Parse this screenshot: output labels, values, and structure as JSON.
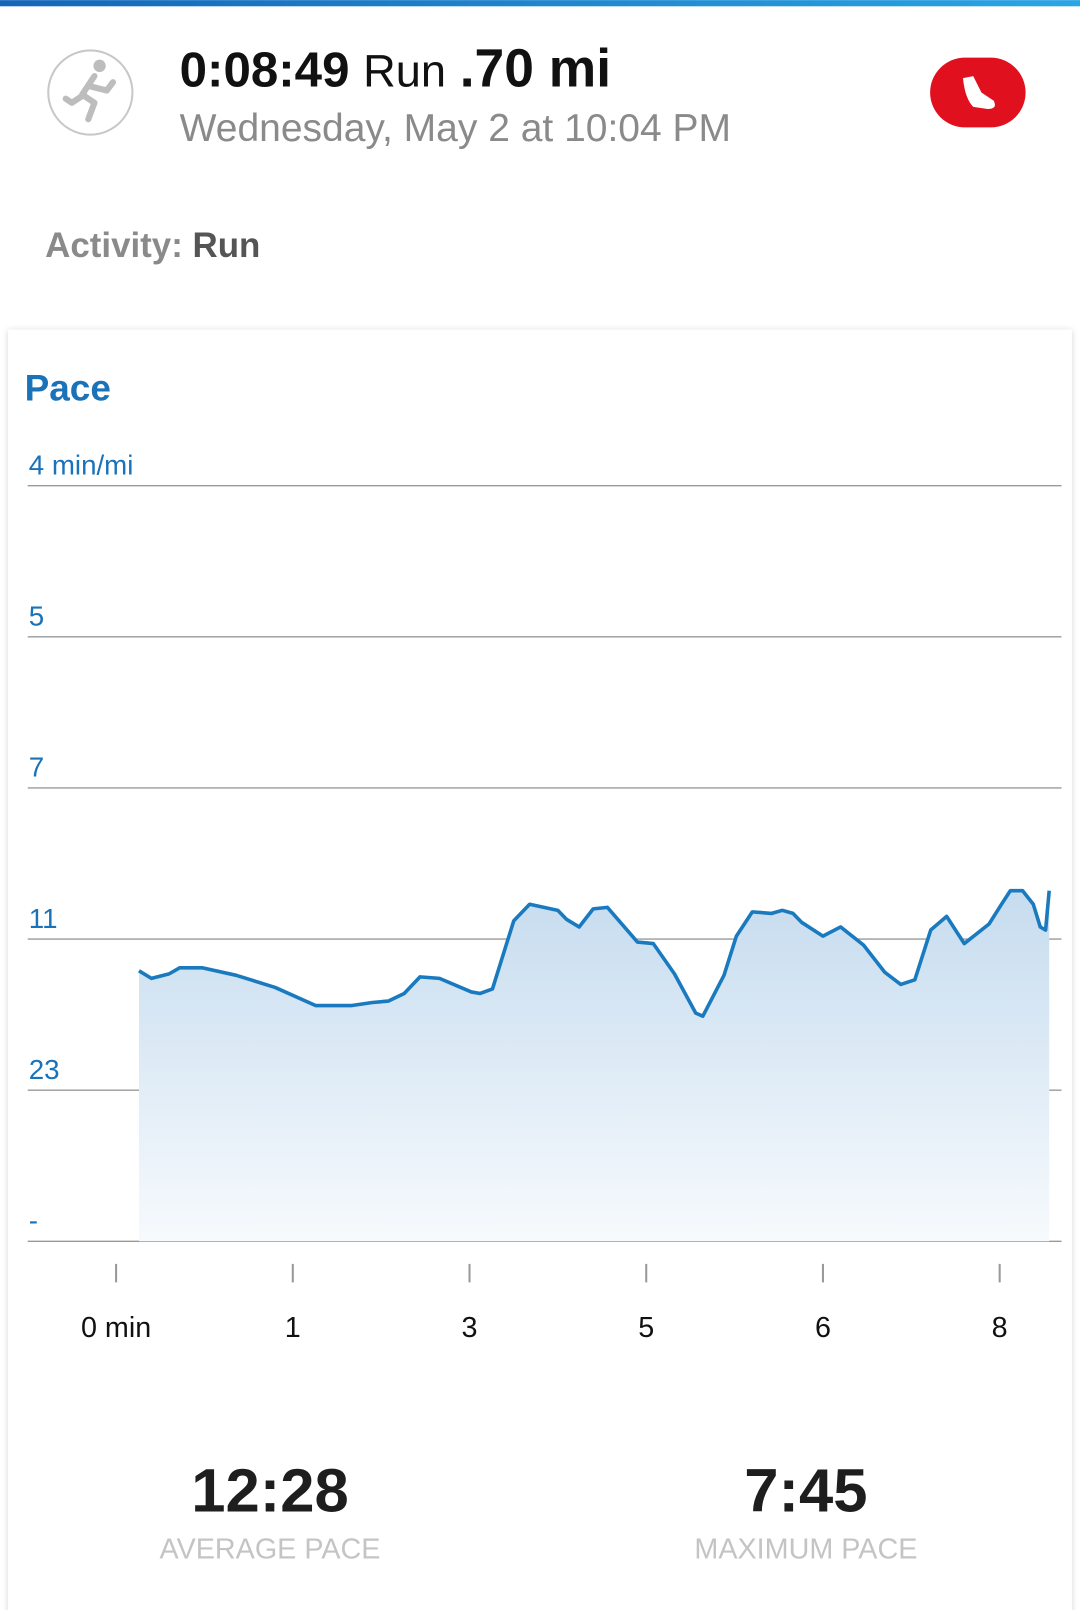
{
  "header": {
    "time": "0:08:49",
    "activity": "Run",
    "distance": ".70 mi",
    "subtitle": "Wednesday, May 2 at 10:04 PM"
  },
  "activity": {
    "label": "Activity:",
    "value": "Run"
  },
  "chart_data": {
    "type": "line",
    "title": "Pace",
    "x": [
      0.13,
      0.2,
      0.3,
      0.36,
      0.49,
      0.68,
      0.9,
      1.13,
      1.33,
      1.45,
      1.54,
      1.63,
      1.72,
      1.83,
      2.01,
      2.06,
      2.13,
      2.25,
      2.34,
      2.5,
      2.55,
      2.62,
      2.7,
      2.78,
      2.95,
      3.04,
      3.16,
      3.28,
      3.32,
      3.44,
      3.51,
      3.6,
      3.71,
      3.77,
      3.83,
      3.88,
      4.0,
      4.1,
      4.23,
      4.35,
      4.44,
      4.52,
      4.61,
      4.7,
      4.8,
      4.94,
      5.01,
      5.06,
      5.13,
      5.19,
      5.23,
      5.26,
      5.28
    ],
    "series": [
      {
        "color": "#1a7abf",
        "values": [
          1.79,
          1.74,
          1.77,
          1.81,
          1.81,
          1.76,
          1.68,
          1.56,
          1.56,
          1.58,
          1.59,
          1.64,
          1.75,
          1.74,
          1.65,
          1.64,
          1.67,
          2.12,
          2.23,
          2.19,
          2.13,
          2.08,
          2.2,
          2.21,
          1.98,
          1.97,
          1.77,
          1.51,
          1.49,
          1.76,
          2.02,
          2.18,
          2.17,
          2.19,
          2.17,
          2.11,
          2.02,
          2.08,
          1.96,
          1.78,
          1.7,
          1.73,
          2.06,
          2.15,
          1.97,
          2.1,
          2.23,
          2.32,
          2.32,
          2.23,
          2.08,
          2.06,
          2.32
        ]
      }
    ],
    "xlim": [
      -0.5,
      5.35
    ],
    "ylim": [
      0,
      5
    ],
    "xticks": [
      {
        "value": 0,
        "label": "0 min"
      },
      {
        "value": 1,
        "label": "1"
      },
      {
        "value": 2,
        "label": "3"
      },
      {
        "value": 3,
        "label": "5"
      },
      {
        "value": 4,
        "label": "6"
      },
      {
        "value": 5,
        "label": "8"
      }
    ],
    "yticks": [
      {
        "value": 5,
        "label": "4 min/mi"
      },
      {
        "value": 4,
        "label": "5"
      },
      {
        "value": 3,
        "label": "7"
      },
      {
        "value": 2,
        "label": "11"
      },
      {
        "value": 1,
        "label": "23"
      },
      {
        "value": 0,
        "label": "-"
      }
    ],
    "grid": true
  },
  "stats": [
    {
      "value": "12:28",
      "label": "AVERAGE PACE"
    },
    {
      "value": "7:45",
      "label": "MAXIMUM PACE"
    }
  ]
}
